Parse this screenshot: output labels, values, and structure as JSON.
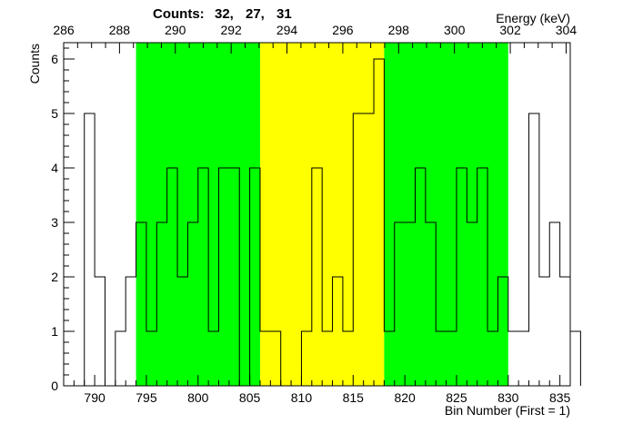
{
  "header": {
    "counts_label": "Counts:",
    "counts_values": [
      "32,",
      "27,",
      "31"
    ]
  },
  "chart_data": {
    "type": "histogram",
    "ylabel": "Counts",
    "xlabel": "Bin Number (First = 1)",
    "x2label": "Energy (keV)",
    "xlim": [
      787,
      836
    ],
    "ylim": [
      0,
      6.3
    ],
    "x_ticks": [
      790,
      795,
      800,
      805,
      810,
      815,
      820,
      825,
      830,
      835
    ],
    "y_ticks": [
      0,
      1,
      2,
      3,
      4,
      5,
      6
    ],
    "x2_ticks": [
      {
        "label": "286",
        "bin": 787.0
      },
      {
        "label": "288",
        "bin": 792.4
      },
      {
        "label": "290",
        "bin": 797.8
      },
      {
        "label": "292",
        "bin": 803.2
      },
      {
        "label": "294",
        "bin": 808.6
      },
      {
        "label": "296",
        "bin": 814.0
      },
      {
        "label": "298",
        "bin": 819.4
      },
      {
        "label": "300",
        "bin": 824.8
      },
      {
        "label": "302",
        "bin": 830.2
      },
      {
        "label": "304",
        "bin": 835.6
      }
    ],
    "regions": [
      {
        "name": "left background",
        "from": 794,
        "to": 806,
        "color": "#00ff00"
      },
      {
        "name": "peak",
        "from": 806,
        "to": 818,
        "color": "#ffff00"
      },
      {
        "name": "right background",
        "from": 818,
        "to": 830,
        "color": "#00ff00"
      }
    ],
    "bins_start": 788,
    "values": [
      0,
      5,
      2,
      0,
      1,
      2,
      3,
      1,
      3,
      4,
      2,
      3,
      4,
      1,
      4,
      4,
      0,
      4,
      1,
      1,
      0,
      0,
      1,
      4,
      1,
      2,
      1,
      5,
      5,
      6,
      1,
      3,
      3,
      4,
      3,
      1,
      1,
      4,
      3,
      4,
      1,
      2,
      1,
      1,
      5,
      2,
      3,
      2,
      1
    ]
  }
}
